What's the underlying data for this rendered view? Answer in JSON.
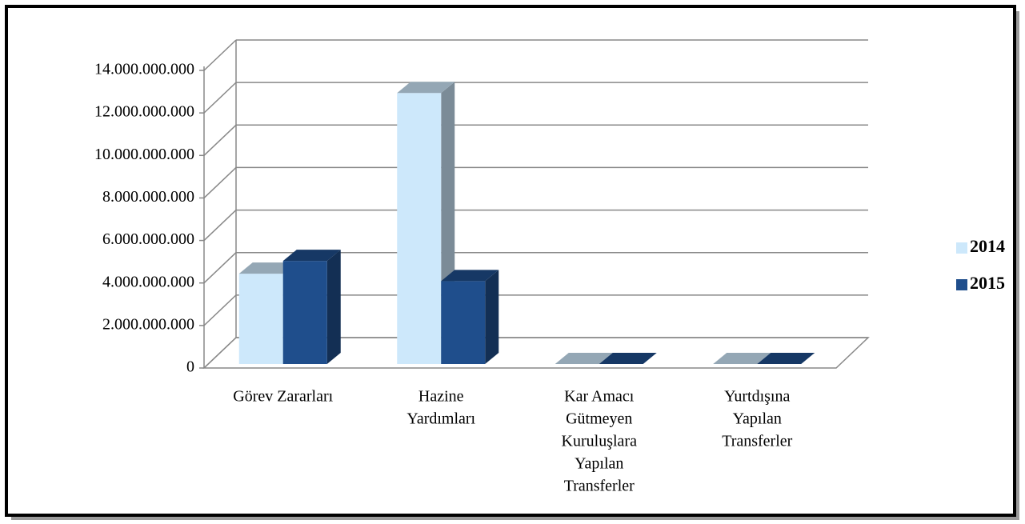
{
  "chart_data": {
    "type": "bar3d",
    "categories": [
      [
        "Görev Zararları"
      ],
      [
        "Hazine",
        "Yardımları"
      ],
      [
        "Kar Amacı",
        "Gütmeyen",
        "Kuruluşlara",
        "Yapılan",
        "Transferler"
      ],
      [
        "Yurtdışına",
        "Yapılan",
        "Transferler"
      ]
    ],
    "series": [
      {
        "name": "2014",
        "color": "#cde8fb",
        "values": [
          4250000000,
          12750000000,
          0,
          0
        ]
      },
      {
        "name": "2015",
        "color": "#1f4e8c",
        "values": [
          4850000000,
          3900000000,
          0,
          0
        ]
      }
    ],
    "ylim": [
      0,
      14000000000
    ],
    "yticks": [
      0,
      {
        "value": 2000000000,
        "label": "2.000.000.000"
      },
      {
        "value": 4000000000,
        "label": "4.000.000.000"
      },
      {
        "value": 6000000000,
        "label": "6.000.000.000"
      },
      {
        "value": 8000000000,
        "label": "8.000.000.000"
      },
      {
        "value": 10000000000,
        "label": "10.000.000.000"
      },
      {
        "value": 12000000000,
        "label": "12.000.000.000"
      },
      {
        "value": 14000000000,
        "label": "14.000.000.000"
      }
    ],
    "grid": true,
    "legend": "right"
  }
}
